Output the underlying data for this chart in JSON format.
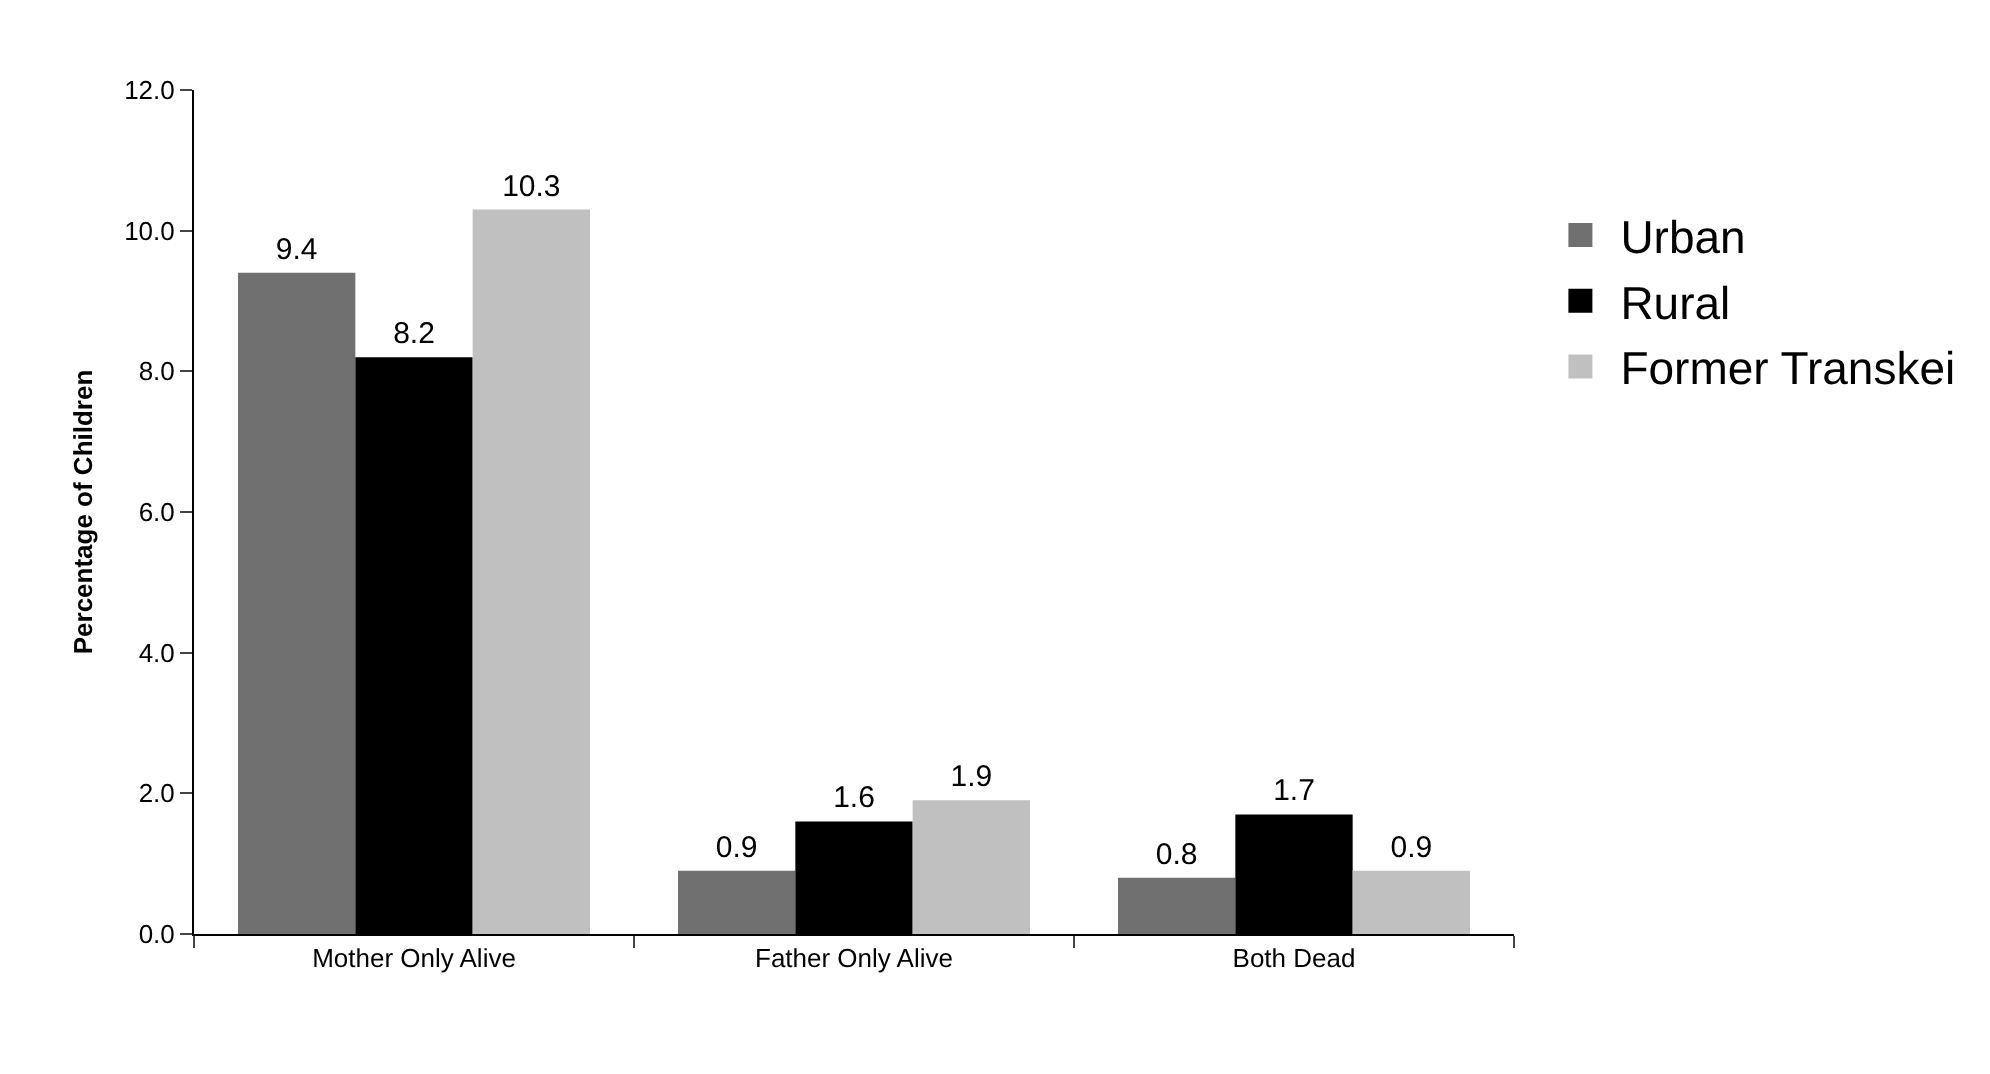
{
  "chart_data": {
    "type": "bar",
    "ylabel": "Percentage of Children",
    "categories": [
      "Mother Only Alive",
      "Father Only Alive",
      "Both Dead"
    ],
    "series": [
      {
        "name": "Urban",
        "color": "#707070",
        "values": [
          9.4,
          0.9,
          0.8
        ]
      },
      {
        "name": "Rural",
        "color": "#000000",
        "values": [
          8.2,
          1.6,
          1.7
        ]
      },
      {
        "name": "Former Transkei",
        "color": "#c0c0c0",
        "values": [
          10.3,
          1.9,
          0.9
        ]
      }
    ],
    "ylim": [
      0,
      12
    ],
    "yticks": [
      {
        "value": 0,
        "label": "0.0"
      },
      {
        "value": 2,
        "label": "2.0"
      },
      {
        "value": 4,
        "label": "4.0"
      },
      {
        "value": 6,
        "label": "6.0"
      },
      {
        "value": 8,
        "label": "8.0"
      },
      {
        "value": 10,
        "label": "10.0"
      },
      {
        "value": 12,
        "label": "12.0"
      }
    ],
    "data_labels": true,
    "grid": false,
    "legend": "right"
  }
}
